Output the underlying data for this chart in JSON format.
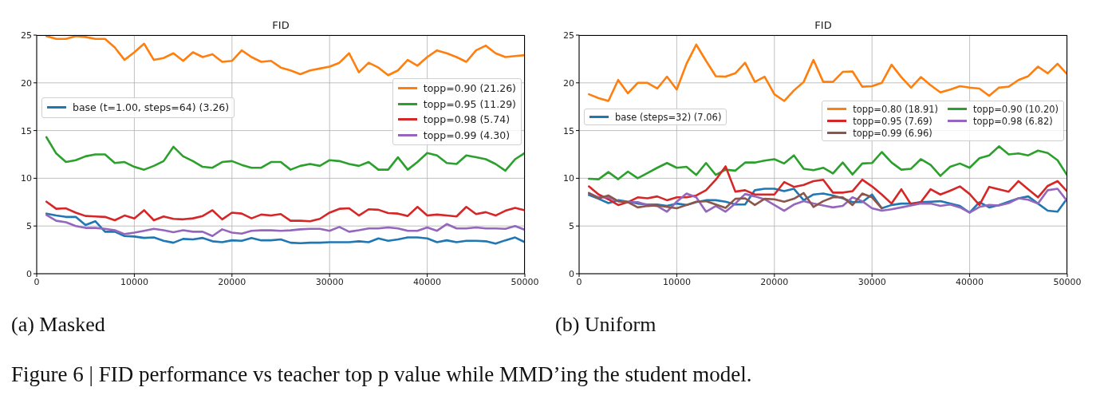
{
  "chart_data": [
    {
      "type": "line",
      "title": "FID",
      "xlim": [
        0,
        50000
      ],
      "xticks": [
        0,
        10000,
        20000,
        30000,
        40000,
        50000
      ],
      "ylim": [
        0,
        25
      ],
      "yticks": [
        0,
        5,
        10,
        15,
        20,
        25
      ],
      "grid": true,
      "legend": "right",
      "x": [
        1000,
        2000,
        3000,
        4000,
        5000,
        6000,
        7000,
        8000,
        9000,
        10000,
        11000,
        12000,
        13000,
        14000,
        15000,
        16000,
        17000,
        18000,
        19000,
        20000,
        21000,
        22000,
        23000,
        24000,
        25000,
        26000,
        27000,
        28000,
        29000,
        30000,
        31000,
        32000,
        33000,
        34000,
        35000,
        36000,
        37000,
        38000,
        39000,
        40000,
        41000,
        42000,
        43000,
        44000,
        45000,
        46000,
        47000,
        48000,
        49000,
        50000
      ],
      "series": [
        {
          "name": "base (t=1.00, steps=64) (3.26)",
          "color": "#1f77b4",
          "values": [
            6.3,
            6.1,
            5.95,
            5.95,
            5.1,
            5.5,
            4.4,
            4.4,
            3.95,
            3.9,
            3.75,
            3.8,
            3.45,
            3.25,
            3.65,
            3.6,
            3.75,
            3.4,
            3.3,
            3.5,
            3.45,
            3.75,
            3.5,
            3.5,
            3.6,
            3.25,
            3.2,
            3.25,
            3.25,
            3.3,
            3.3,
            3.3,
            3.4,
            3.3,
            3.7,
            3.45,
            3.6,
            3.8,
            3.8,
            3.7,
            3.3,
            3.5,
            3.3,
            3.45,
            3.45,
            3.4,
            3.15,
            3.5,
            3.8,
            3.3
          ]
        },
        {
          "name": "topp=0.90 (21.26)",
          "color": "#ff7f0e",
          "values": [
            24.9,
            24.6,
            24.6,
            24.9,
            24.8,
            24.6,
            24.6,
            23.7,
            22.4,
            23.2,
            24.1,
            22.4,
            22.6,
            23.1,
            22.3,
            23.2,
            22.7,
            23.0,
            22.2,
            22.3,
            23.4,
            22.7,
            22.2,
            22.3,
            21.6,
            21.3,
            20.9,
            21.3,
            21.5,
            21.7,
            22.1,
            23.1,
            21.1,
            22.1,
            21.6,
            20.8,
            21.3,
            22.4,
            21.8,
            22.7,
            23.4,
            23.1,
            22.7,
            22.2,
            23.4,
            23.9,
            23.1,
            22.7,
            22.8,
            22.9
          ]
        },
        {
          "name": "topp=0.95 (11.29)",
          "color": "#2ca02c",
          "values": [
            14.3,
            12.6,
            11.7,
            11.9,
            12.3,
            12.5,
            12.5,
            11.6,
            11.7,
            11.2,
            10.9,
            11.3,
            11.8,
            13.3,
            12.3,
            11.8,
            11.2,
            11.1,
            11.7,
            11.8,
            11.4,
            11.1,
            11.1,
            11.7,
            11.7,
            10.9,
            11.3,
            11.5,
            11.3,
            11.9,
            11.8,
            11.5,
            11.3,
            11.7,
            10.9,
            10.9,
            12.2,
            10.9,
            11.7,
            12.65,
            12.4,
            11.6,
            11.5,
            12.4,
            12.2,
            12.0,
            11.5,
            10.8,
            12.0,
            12.65
          ]
        },
        {
          "name": "topp=0.98 (5.74)",
          "color": "#d62728",
          "values": [
            7.55,
            6.8,
            6.85,
            6.4,
            6.05,
            6.0,
            5.95,
            5.6,
            6.1,
            5.8,
            6.65,
            5.6,
            6.0,
            5.75,
            5.7,
            5.8,
            6.05,
            6.65,
            5.7,
            6.4,
            6.3,
            5.8,
            6.2,
            6.1,
            6.25,
            5.55,
            5.55,
            5.5,
            5.75,
            6.4,
            6.8,
            6.85,
            6.1,
            6.75,
            6.7,
            6.35,
            6.3,
            6.05,
            7.0,
            6.1,
            6.2,
            6.1,
            6.0,
            7.0,
            6.25,
            6.45,
            6.1,
            6.6,
            6.9,
            6.65
          ]
        },
        {
          "name": "topp=0.99 (4.30)",
          "color": "#9467bd",
          "values": [
            6.15,
            5.55,
            5.4,
            5.0,
            4.8,
            4.8,
            4.7,
            4.55,
            4.15,
            4.3,
            4.5,
            4.7,
            4.55,
            4.35,
            4.55,
            4.4,
            4.4,
            3.95,
            4.65,
            4.3,
            4.2,
            4.5,
            4.55,
            4.55,
            4.5,
            4.55,
            4.65,
            4.7,
            4.7,
            4.5,
            4.9,
            4.4,
            4.55,
            4.75,
            4.75,
            4.85,
            4.75,
            4.5,
            4.5,
            4.85,
            4.5,
            5.2,
            4.75,
            4.75,
            4.85,
            4.75,
            4.75,
            4.7,
            5.0,
            4.6
          ]
        }
      ],
      "annotations": [
        "(a) Masked",
        "Figure 6 | FID performance vs teacher top p value while MMD’ing the student model."
      ]
    },
    {
      "type": "line",
      "title": "FID",
      "xlim": [
        0,
        50000
      ],
      "xticks": [
        0,
        10000,
        20000,
        30000,
        40000,
        50000
      ],
      "ylim": [
        0,
        25
      ],
      "yticks": [
        0,
        5,
        10,
        15,
        20,
        25
      ],
      "grid": true,
      "legend": "right",
      "x": [
        1000,
        2000,
        3000,
        4000,
        5000,
        6000,
        7000,
        8000,
        9000,
        10000,
        11000,
        12000,
        13000,
        14000,
        15000,
        16000,
        17000,
        18000,
        19000,
        20000,
        21000,
        22000,
        23000,
        24000,
        25000,
        26000,
        27000,
        28000,
        29000,
        30000,
        31000,
        32000,
        33000,
        34000,
        35000,
        36000,
        37000,
        38000,
        39000,
        40000,
        41000,
        42000,
        43000,
        44000,
        45000,
        46000,
        47000,
        48000,
        49000,
        50000
      ],
      "series": [
        {
          "name": "base (steps=32) (7.06)",
          "color": "#1f77b4",
          "values": [
            8.25,
            7.85,
            7.4,
            7.7,
            7.55,
            7.35,
            7.25,
            7.25,
            7.1,
            7.35,
            7.2,
            7.5,
            7.7,
            7.7,
            7.55,
            7.25,
            7.25,
            8.75,
            8.9,
            8.9,
            8.65,
            8.9,
            7.7,
            8.3,
            8.4,
            8.2,
            7.9,
            7.5,
            7.5,
            8.3,
            6.85,
            7.2,
            7.35,
            7.35,
            7.5,
            7.55,
            7.6,
            7.35,
            7.1,
            6.4,
            7.5,
            6.95,
            7.2,
            7.55,
            7.9,
            8.1,
            7.35,
            6.6,
            6.5,
            7.9
          ]
        },
        {
          "name": "topp=0.80 (18.91)",
          "color": "#ff7f0e",
          "values": [
            18.8,
            18.4,
            18.1,
            20.3,
            18.9,
            20.0,
            20.0,
            19.4,
            20.65,
            19.3,
            22.0,
            24.0,
            22.3,
            20.7,
            20.65,
            21.0,
            22.1,
            20.1,
            20.65,
            18.8,
            18.1,
            19.2,
            20.1,
            22.4,
            20.1,
            20.1,
            21.15,
            21.2,
            19.6,
            19.65,
            20.0,
            21.9,
            20.6,
            19.5,
            20.6,
            19.75,
            19.0,
            19.3,
            19.65,
            19.5,
            19.4,
            18.65,
            19.5,
            19.6,
            20.3,
            20.7,
            21.7,
            21.0,
            22.0,
            20.9
          ]
        },
        {
          "name": "topp=0.90 (10.20)",
          "color": "#2ca02c",
          "values": [
            9.95,
            9.9,
            10.65,
            9.9,
            10.7,
            10.0,
            10.55,
            11.1,
            11.6,
            11.1,
            11.2,
            10.35,
            11.6,
            10.35,
            10.9,
            10.8,
            11.65,
            11.65,
            11.85,
            12.0,
            11.55,
            12.4,
            11.0,
            10.85,
            11.1,
            10.5,
            11.65,
            10.4,
            11.55,
            11.6,
            12.75,
            11.65,
            10.9,
            11.0,
            12.0,
            11.4,
            10.25,
            11.2,
            11.55,
            11.1,
            12.1,
            12.4,
            13.35,
            12.5,
            12.6,
            12.4,
            12.9,
            12.65,
            11.9,
            10.3
          ]
        },
        {
          "name": "topp=0.95 (7.69)",
          "color": "#d62728",
          "values": [
            9.15,
            8.3,
            7.8,
            7.2,
            7.5,
            8.0,
            7.9,
            8.1,
            7.7,
            8.0,
            8.0,
            8.2,
            8.75,
            9.85,
            11.25,
            8.6,
            8.75,
            8.3,
            8.3,
            8.3,
            9.6,
            9.1,
            9.3,
            9.7,
            9.85,
            8.5,
            8.5,
            8.65,
            9.85,
            9.15,
            8.3,
            7.35,
            8.85,
            7.25,
            7.5,
            8.85,
            8.3,
            8.7,
            9.15,
            8.35,
            7.2,
            9.1,
            8.85,
            8.6,
            9.7,
            8.85,
            8.0,
            9.2,
            9.7,
            8.6
          ]
        },
        {
          "name": "topp=0.98 (6.82)",
          "color": "#9467bd",
          "values": [
            8.45,
            8.0,
            8.0,
            7.6,
            7.5,
            7.5,
            7.2,
            7.1,
            6.5,
            7.55,
            8.4,
            8.0,
            6.5,
            7.1,
            6.5,
            7.35,
            8.35,
            8.1,
            7.8,
            7.2,
            6.6,
            7.25,
            7.6,
            7.35,
            7.15,
            6.95,
            7.1,
            8.0,
            7.6,
            6.85,
            6.6,
            6.75,
            6.95,
            7.15,
            7.35,
            7.35,
            7.1,
            7.25,
            6.95,
            6.4,
            7.0,
            7.2,
            7.15,
            7.4,
            7.9,
            7.75,
            7.35,
            8.75,
            8.9,
            7.6
          ]
        },
        {
          "name": "topp=0.99 (6.96)",
          "color": "#8c564b",
          "x": [
            1000,
            2000,
            3000,
            4000,
            5000,
            6000,
            7000,
            8000,
            9000,
            10000,
            11000,
            12000,
            13000,
            14000,
            15000,
            16000,
            17000,
            18000,
            19000,
            20000,
            21000,
            22000,
            23000,
            24000,
            25000,
            26000,
            27000,
            28000,
            29000,
            30000,
            31000
          ],
          "values": [
            8.45,
            7.9,
            8.2,
            7.6,
            7.5,
            6.95,
            7.1,
            7.15,
            7.0,
            6.85,
            7.2,
            7.55,
            7.6,
            7.25,
            6.9,
            7.85,
            7.9,
            7.2,
            7.85,
            7.8,
            7.55,
            7.85,
            8.45,
            7.0,
            7.6,
            8.0,
            8.0,
            7.2,
            8.4,
            8.0,
            6.85
          ]
        }
      ],
      "annotations": [
        "(b) Uniform"
      ]
    }
  ]
}
